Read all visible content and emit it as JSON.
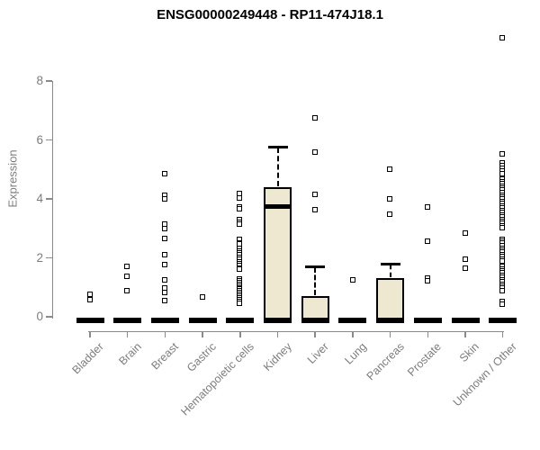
{
  "chart_data": {
    "type": "boxplot",
    "title": "ENSG00000249448 - RP11-474J18.1",
    "ylabel": "Expression",
    "xlabel": "",
    "ylim": [
      0,
      9.6
    ],
    "yticks": [
      0,
      2,
      4,
      6,
      8
    ],
    "grid": false,
    "legend": false,
    "colors": {
      "box_fill": "#ede8cf",
      "box_border": "#000000",
      "median": "#000000",
      "outlier": "#000000",
      "axis": "#8a8a8a",
      "tick_label": "#7d7d7d",
      "title": "#000000",
      "background": "#ffffff"
    },
    "categories": [
      "Bladder",
      "Brain",
      "Breast",
      "Gastric",
      "Hematopoietic cells",
      "Kidney",
      "Liver",
      "Lung",
      "Pancreas",
      "Prostate",
      "Skin",
      "Unknown / Other"
    ],
    "boxes": [
      {
        "category": "Bladder",
        "q1": 0,
        "median": 0,
        "q3": 0,
        "whisker_low": 0,
        "whisker_high": 0,
        "outliers": [
          0.75,
          0.58
        ]
      },
      {
        "category": "Brain",
        "q1": 0,
        "median": 0,
        "q3": 0,
        "whisker_low": 0,
        "whisker_high": 0,
        "outliers": [
          1.7,
          1.35,
          0.88
        ]
      },
      {
        "category": "Breast",
        "q1": 0,
        "median": 0,
        "q3": 0,
        "whisker_low": 0,
        "whisker_high": 0,
        "outliers": [
          4.85,
          4.1,
          4.0,
          3.12,
          2.98,
          2.65,
          2.1,
          1.75,
          1.25,
          0.95,
          0.82,
          0.55
        ]
      },
      {
        "category": "Gastric",
        "q1": 0,
        "median": 0,
        "q3": 0,
        "whisker_low": 0,
        "whisker_high": 0,
        "outliers": [
          0.65
        ]
      },
      {
        "category": "Hematopoietic cells",
        "q1": 0,
        "median": 0,
        "q3": 0,
        "whisker_low": 0,
        "whisker_high": 0,
        "outliers": [
          4.18,
          4.03,
          3.72,
          3.66,
          3.3,
          3.2,
          3.12,
          2.6,
          2.5,
          2.45,
          2.3,
          2.22,
          2.15,
          2.08,
          2.0,
          1.93,
          1.86,
          1.79,
          1.72,
          1.65,
          1.6,
          1.28,
          1.22,
          1.16,
          1.1,
          1.04,
          0.98,
          0.92,
          0.86,
          0.8,
          0.74,
          0.68,
          0.62,
          0.56,
          0.5,
          0.44
        ]
      },
      {
        "category": "Kidney",
        "q1": 0,
        "median": 3.73,
        "q3": 4.4,
        "whisker_low": 0,
        "whisker_high": 5.76,
        "outliers": []
      },
      {
        "category": "Liver",
        "q1": 0,
        "median": 0,
        "q3": 0.7,
        "whisker_low": 0,
        "whisker_high": 1.7,
        "outliers": [
          6.73,
          5.58,
          4.13,
          3.62
        ]
      },
      {
        "category": "Lung",
        "q1": 0,
        "median": 0,
        "q3": 0,
        "whisker_low": 0,
        "whisker_high": 0,
        "outliers": [
          1.25
        ]
      },
      {
        "category": "Pancreas",
        "q1": 0,
        "median": 0,
        "q3": 1.3,
        "whisker_low": 0,
        "whisker_high": 1.8,
        "outliers": [
          5.0,
          3.98,
          3.48
        ]
      },
      {
        "category": "Prostate",
        "q1": 0,
        "median": 0,
        "q3": 0,
        "whisker_low": 0,
        "whisker_high": 0,
        "outliers": [
          3.7,
          2.55,
          1.3,
          1.22
        ]
      },
      {
        "category": "Skin",
        "q1": 0,
        "median": 0,
        "q3": 0,
        "whisker_low": 0,
        "whisker_high": 0,
        "outliers": [
          2.82,
          1.95,
          1.65
        ]
      },
      {
        "category": "Unknown / Other",
        "q1": 0,
        "median": 0,
        "q3": 0,
        "whisker_low": 0,
        "whisker_high": 0,
        "outliers": [
          9.45,
          5.5,
          5.22,
          5.12,
          5.02,
          4.92,
          4.84,
          4.65,
          4.58,
          4.5,
          4.42,
          4.35,
          4.28,
          4.2,
          4.12,
          4.05,
          3.98,
          3.9,
          3.82,
          3.75,
          3.68,
          3.6,
          3.52,
          3.45,
          3.38,
          3.3,
          3.22,
          3.15,
          3.08,
          3.0,
          2.62,
          2.55,
          2.48,
          2.4,
          2.32,
          2.25,
          2.18,
          2.1,
          2.02,
          1.95,
          1.88,
          1.7,
          1.62,
          1.55,
          1.48,
          1.4,
          1.32,
          1.25,
          1.18,
          1.1,
          1.02,
          0.95,
          0.88,
          0.5,
          0.42
        ]
      }
    ]
  }
}
